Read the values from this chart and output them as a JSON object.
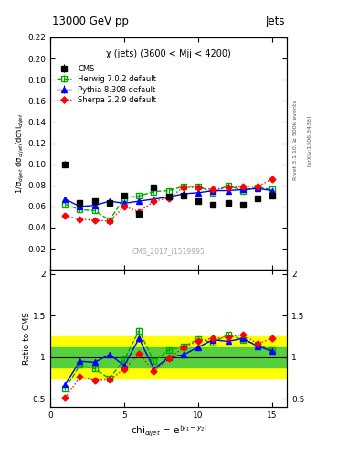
{
  "title_top": "13000 GeV pp",
  "title_right": "Jets",
  "panel_title": "χ (jets) (3600 < Mjj < 4200)",
  "watermark": "CMS_2017_I1519995",
  "right_label1": "Rivet 3.1.10, ≥ 500k events",
  "right_label2": "[arXiv:1306.3436]",
  "ylabel_main": "1/σ$_{dijet}$ dσ$_{dijet}$/dchi$_{dijet}$",
  "ylabel_ratio": "Ratio to CMS",
  "xlabel": "chi$_{dijet}$ = e$^{|y_1 - y_2|}$",
  "ylim_main": [
    0.0,
    0.22
  ],
  "ylim_ratio": [
    0.4,
    2.05
  ],
  "xlim": [
    0,
    16
  ],
  "cms_x": [
    1,
    2,
    3,
    4,
    5,
    6,
    7,
    8,
    9,
    10,
    11,
    12,
    13,
    14,
    15
  ],
  "cms_y": [
    0.1,
    0.063,
    0.065,
    0.063,
    0.07,
    0.053,
    0.078,
    0.069,
    0.07,
    0.065,
    0.062,
    0.063,
    0.062,
    0.068,
    0.07
  ],
  "cms_yerr": [
    0.003,
    0.002,
    0.002,
    0.002,
    0.002,
    0.002,
    0.003,
    0.002,
    0.002,
    0.002,
    0.002,
    0.002,
    0.002,
    0.002,
    0.002
  ],
  "herwig_x": [
    1,
    2,
    3,
    4,
    5,
    6,
    7,
    8,
    9,
    10,
    11,
    12,
    13,
    14,
    15
  ],
  "herwig_y": [
    0.062,
    0.057,
    0.056,
    0.047,
    0.068,
    0.07,
    0.074,
    0.075,
    0.079,
    0.079,
    0.073,
    0.08,
    0.075,
    0.078,
    0.076
  ],
  "herwig_yerr": [
    0.002,
    0.002,
    0.002,
    0.002,
    0.002,
    0.002,
    0.002,
    0.002,
    0.002,
    0.002,
    0.002,
    0.002,
    0.002,
    0.002,
    0.002
  ],
  "pythia_x": [
    1,
    2,
    3,
    4,
    5,
    6,
    7,
    8,
    9,
    10,
    11,
    12,
    13,
    14,
    15
  ],
  "pythia_y": [
    0.067,
    0.06,
    0.061,
    0.065,
    0.063,
    0.065,
    0.067,
    0.069,
    0.072,
    0.073,
    0.075,
    0.075,
    0.076,
    0.077,
    0.075
  ],
  "pythia_yerr": [
    0.002,
    0.002,
    0.002,
    0.002,
    0.002,
    0.002,
    0.002,
    0.002,
    0.002,
    0.002,
    0.002,
    0.002,
    0.002,
    0.002,
    0.002
  ],
  "sherpa_x": [
    1,
    2,
    3,
    4,
    5,
    6,
    7,
    8,
    9,
    10,
    11,
    12,
    13,
    14,
    15
  ],
  "sherpa_y": [
    0.051,
    0.048,
    0.047,
    0.046,
    0.06,
    0.055,
    0.065,
    0.068,
    0.078,
    0.078,
    0.076,
    0.078,
    0.079,
    0.079,
    0.086
  ],
  "sherpa_yerr": [
    0.002,
    0.002,
    0.002,
    0.002,
    0.002,
    0.002,
    0.002,
    0.002,
    0.002,
    0.002,
    0.002,
    0.002,
    0.002,
    0.002,
    0.002
  ],
  "cms_color": "black",
  "herwig_color": "#00aa00",
  "pythia_color": "blue",
  "sherpa_color": "red",
  "band_yellow": [
    0.75,
    1.25
  ],
  "band_green": [
    0.88,
    1.12
  ]
}
